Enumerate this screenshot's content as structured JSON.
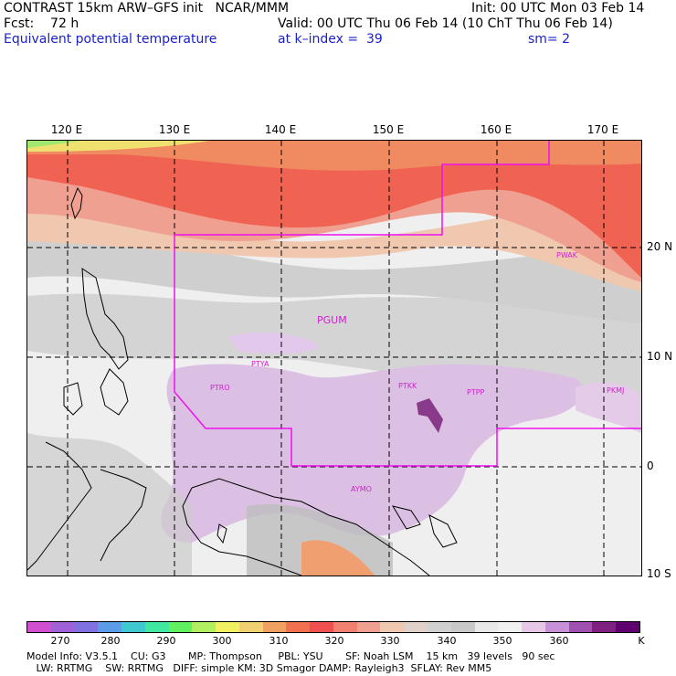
{
  "header": {
    "line1_left": "CONTRAST 15km ARW–GFS init   NCAR/MMM",
    "line1_right": "Init: 00 UTC Mon 03 Feb 14",
    "line2_left": "Fcst:    72 h",
    "line2_right": "Valid: 00 UTC Thu 06 Feb 14 (10 ChT Thu 06 Feb 14)",
    "line3_left": "Equivalent potential temperature",
    "line3_mid": "at k–index =  39",
    "line3_right": "sm= 2"
  },
  "axes": {
    "lon_labels": [
      "120 E",
      "130 E",
      "140 E",
      "150 E",
      "160 E",
      "170 E"
    ],
    "lat_labels": [
      "20 N",
      "10 N",
      "0",
      "10 S"
    ]
  },
  "stations": [
    "PGUM",
    "PTYA",
    "PTRO",
    "PTKK",
    "PTPP",
    "PKMJ",
    "PWAK",
    "AYMO"
  ],
  "colorbar": {
    "colors": [
      "#d050d0",
      "#a060d8",
      "#8070e0",
      "#5a9ce8",
      "#40c8d0",
      "#40e8a0",
      "#60f060",
      "#b0f060",
      "#f0f060",
      "#f0d070",
      "#f0a060",
      "#f07050",
      "#f05050",
      "#f08070",
      "#f0a090",
      "#f0c8b0",
      "#e0d0c8",
      "#d0d0d0",
      "#c8c8c8",
      "#e8e8e8",
      "#f0f0f0",
      "#e8c8e8",
      "#c890d8",
      "#a050b0",
      "#802080",
      "#600070"
    ],
    "labels": [
      "270",
      "280",
      "290",
      "300",
      "310",
      "320",
      "330",
      "340",
      "350",
      "360",
      "K"
    ]
  },
  "footer": {
    "line1": "Model Info: V3.5.1    CU: G3       MP: Thompson     PBL: YSU       SF: Noah LSM    15 km   39 levels   90 sec",
    "line2": "   LW: RRTMG    SW: RRTMG   DIFF: simple KM: 3D Smagor DAMP: Rayleigh3  SFLAY: Rev MM5"
  }
}
